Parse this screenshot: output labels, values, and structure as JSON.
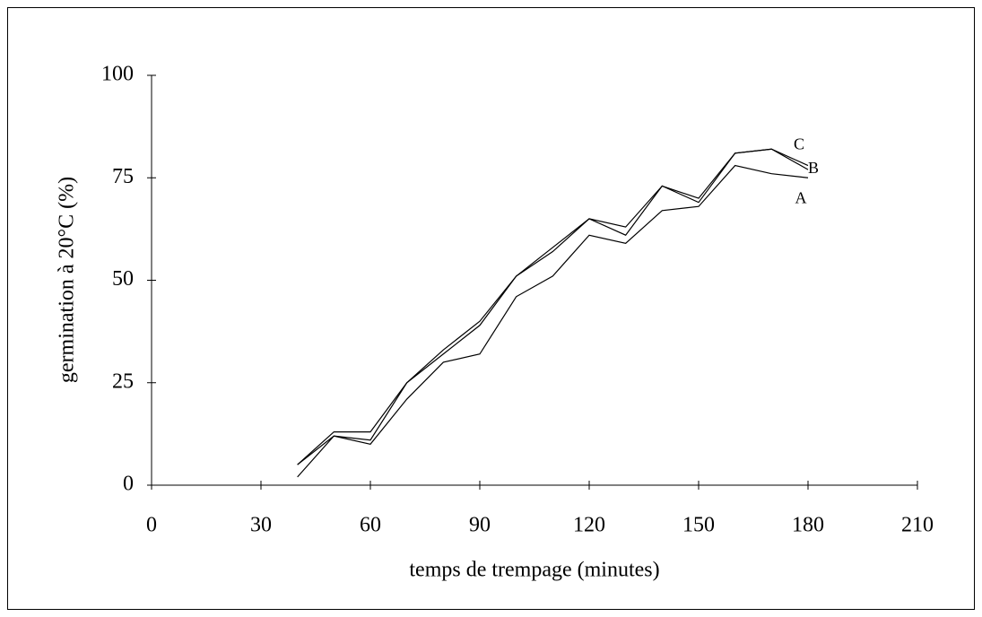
{
  "chart_data": {
    "type": "line",
    "xlabel": "temps de trempage (minutes)",
    "ylabel": "germination à 20°C (%)",
    "x": [
      40,
      50,
      60,
      70,
      80,
      90,
      100,
      110,
      120,
      130,
      140,
      150,
      160,
      170,
      180
    ],
    "series": [
      {
        "name": "A",
        "color": "#000000",
        "values": [
          2,
          12,
          10,
          21,
          30,
          32,
          46,
          51,
          61,
          59,
          67,
          68,
          78,
          76,
          75
        ]
      },
      {
        "name": "B",
        "color": "#000000",
        "values": [
          5,
          12,
          11,
          25,
          32,
          39,
          51,
          57,
          65,
          61,
          73,
          69,
          81,
          82,
          77
        ]
      },
      {
        "name": "C",
        "color": "#000000",
        "values": [
          5,
          13,
          13,
          25,
          33,
          40,
          51,
          58,
          65,
          63,
          73,
          70,
          81,
          82,
          78
        ]
      }
    ],
    "xlim": [
      0,
      210
    ],
    "xticks": [
      0,
      30,
      60,
      90,
      120,
      150,
      180,
      210
    ],
    "ylim": [
      0,
      100
    ],
    "yticks": [
      0,
      25,
      50,
      75,
      100
    ],
    "grid": false
  }
}
